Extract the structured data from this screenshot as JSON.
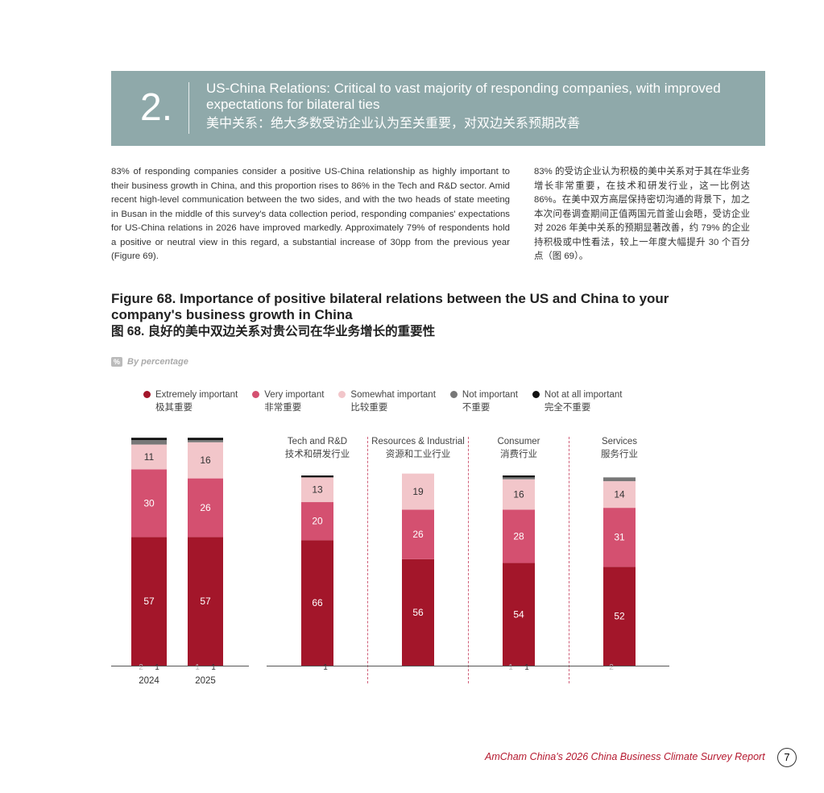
{
  "section": {
    "number": "2.",
    "title_en": "US-China Relations: Critical to vast majority of responding companies, with improved expectations for bilateral ties",
    "title_zh": "美中关系：绝大多数受访企业认为至关重要，对双边关系预期改善"
  },
  "body_en": "83% of responding companies consider a positive US-China relationship as highly important to their business growth in China, and this proportion rises to 86% in the Tech and R&D sector. Amid recent high-level communication between the two sides, and with the two heads of state meeting in Busan in the middle of this survey's data collection period, responding companies' expectations for US-China relations in 2026 have improved markedly. Approximately 79% of respondents hold a positive or neutral view in this regard, a substantial increase of 30pp from the previous year (Figure 69).",
  "body_zh": "83% 的受访企业认为积极的美中关系对于其在华业务增长非常重要，在技术和研发行业，这一比例达 86%。在美中双方高层保持密切沟通的背景下，加之本次问卷调查期间正值两国元首釜山会晤，受访企业对 2026 年美中关系的预期显著改善，约 79% 的企业持积极或中性看法，较上一年度大幅提升 30 个百分点（图 69）。",
  "figure": {
    "title_en": "Figure 68. Importance of positive bilateral relations between the US and China to your company's business growth in China",
    "title_zh": "图 68. 良好的美中双边关系对贵公司在华业务增长的重要性",
    "unit_badge": "%",
    "unit_label": "By percentage"
  },
  "chart_data": {
    "type": "bar",
    "stacked": true,
    "legend": [
      {
        "en": "Extremely important",
        "zh": "极其重要",
        "color": "#a3162a"
      },
      {
        "en": "Very important",
        "zh": "非常重要",
        "color": "#d45070"
      },
      {
        "en": "Somewhat important",
        "zh": "比较重要",
        "color": "#f2c6ca"
      },
      {
        "en": "Not important",
        "zh": "不重要",
        "color": "#777777"
      },
      {
        "en": "Not at all important",
        "zh": "完全不重要",
        "color": "#111111"
      }
    ],
    "groups": [
      {
        "label_en": "",
        "label_zh": "",
        "bars": [
          {
            "label": "2024",
            "values": [
              57,
              30,
              11,
              2,
              1
            ]
          },
          {
            "label": "2025",
            "values": [
              57,
              26,
              16,
              1,
              1
            ]
          }
        ]
      },
      {
        "label_en": "Tech and R&D",
        "label_zh": "技术和研发行业",
        "bars": [
          {
            "label": "",
            "values": [
              66,
              20,
              13,
              0,
              1
            ]
          }
        ]
      },
      {
        "label_en": "Resources & Industrial",
        "label_zh": "资源和工业行业",
        "bars": [
          {
            "label": "",
            "values": [
              56,
              26,
              19,
              0,
              0
            ]
          }
        ]
      },
      {
        "label_en": "Consumer",
        "label_zh": "消费行业",
        "bars": [
          {
            "label": "",
            "values": [
              54,
              28,
              16,
              1,
              1
            ]
          }
        ]
      },
      {
        "label_en": "Services",
        "label_zh": "服务行业",
        "bars": [
          {
            "label": "",
            "values": [
              52,
              31,
              14,
              2,
              0
            ]
          }
        ]
      }
    ]
  },
  "footer": {
    "report": "AmCham China's 2026 China Business Climate Survey Report",
    "page": "7"
  }
}
